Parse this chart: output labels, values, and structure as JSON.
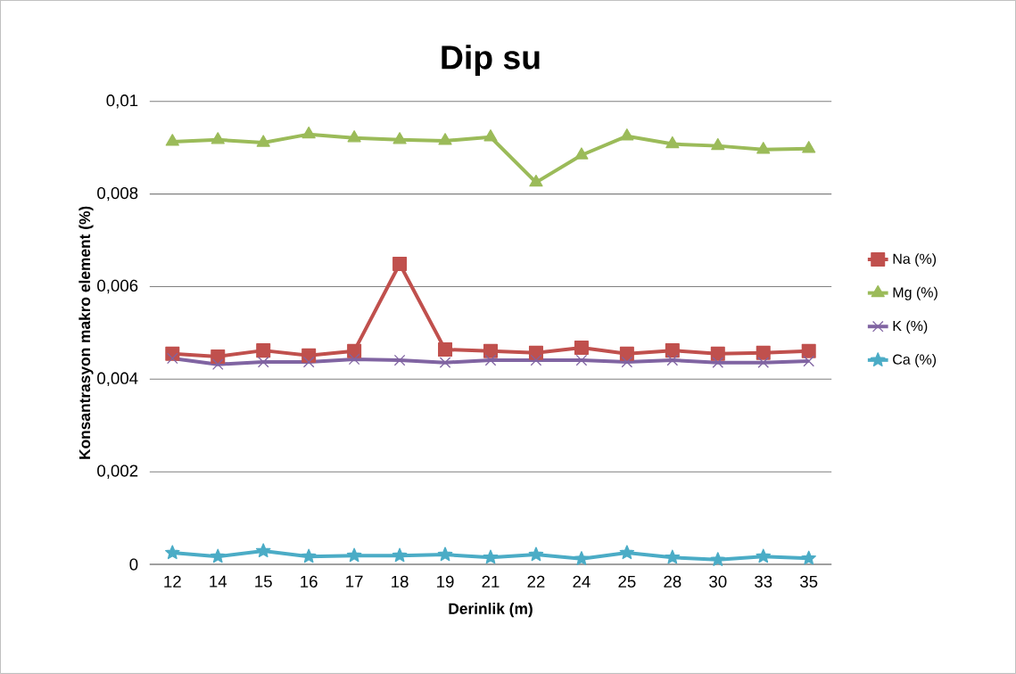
{
  "chart_data": {
    "type": "line",
    "title": "Dip su",
    "xlabel": "Derinlik (m)",
    "ylabel": "Konsantrasyon makro element (%)",
    "categories": [
      "12",
      "14",
      "15",
      "16",
      "17",
      "18",
      "19",
      "21",
      "22",
      "24",
      "25",
      "28",
      "30",
      "33",
      "35"
    ],
    "series": [
      {
        "name": "Na (%)",
        "color": "#c0504d",
        "marker": "square",
        "values": [
          0.00455,
          0.00449,
          0.00462,
          0.00451,
          0.00461,
          0.00649,
          0.00464,
          0.00461,
          0.00457,
          0.00468,
          0.00455,
          0.00462,
          0.00455,
          0.00457,
          0.00461
        ]
      },
      {
        "name": "Mg (%)",
        "color": "#9bbb59",
        "marker": "triangle",
        "values": [
          0.00913,
          0.00917,
          0.00911,
          0.00929,
          0.00921,
          0.00917,
          0.00915,
          0.00923,
          0.00825,
          0.00884,
          0.00925,
          0.00908,
          0.00904,
          0.00896,
          0.00898
        ]
      },
      {
        "name": "K (%)",
        "color": "#8064a2",
        "marker": "cross",
        "values": [
          0.00445,
          0.00432,
          0.00437,
          0.00437,
          0.00443,
          0.00441,
          0.00436,
          0.00441,
          0.00441,
          0.00441,
          0.00437,
          0.00441,
          0.00436,
          0.00436,
          0.00439
        ]
      },
      {
        "name": "Ca (%)",
        "color": "#4bacc6",
        "marker": "star",
        "values": [
          0.00025,
          0.00017,
          0.00029,
          0.00017,
          0.00019,
          0.00019,
          0.00021,
          0.00015,
          0.00021,
          0.00012,
          0.00025,
          0.00015,
          0.0001,
          0.00017,
          0.00013
        ]
      }
    ],
    "ylim": [
      0,
      0.01
    ],
    "yticks": [
      {
        "value": 0,
        "label": "0"
      },
      {
        "value": 0.002,
        "label": "0,002"
      },
      {
        "value": 0.004,
        "label": "0,004"
      },
      {
        "value": 0.006,
        "label": "0,006"
      },
      {
        "value": 0.008,
        "label": "0,008"
      },
      {
        "value": 0.01,
        "label": "0,01"
      }
    ],
    "grid": "y",
    "legend": "right",
    "line_style": "solid"
  }
}
